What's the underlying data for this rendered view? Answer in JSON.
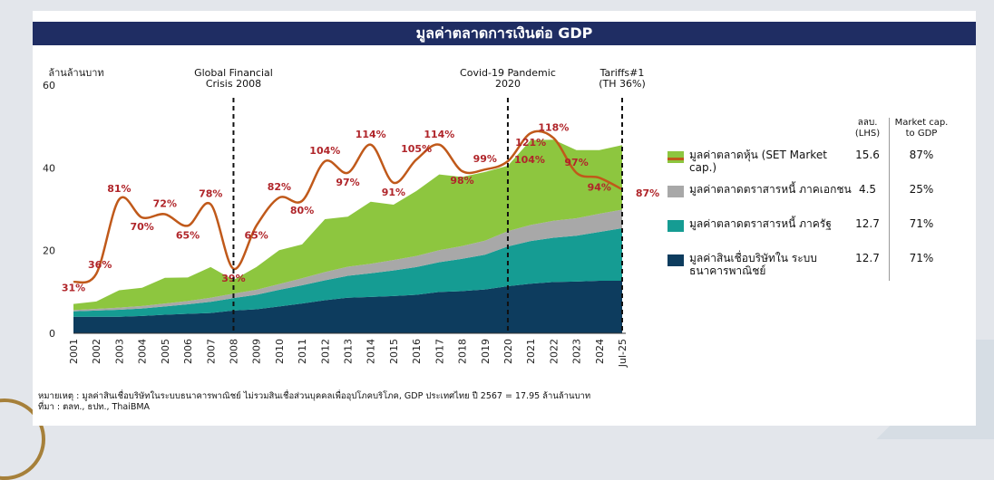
{
  "title": "มูลค่าตลาดการเงินต่อ GDP",
  "chart_data": {
    "type": "area",
    "ylabel": "ล้านล้านบาท",
    "ylim": [
      0,
      60
    ],
    "yticks": [
      0,
      20,
      40,
      60
    ],
    "x": [
      "2001",
      "2002",
      "2003",
      "2004",
      "2005",
      "2006",
      "2007",
      "2008",
      "2009",
      "2010",
      "2011",
      "2012",
      "2013",
      "2014",
      "2015",
      "2016",
      "2017",
      "2018",
      "2019",
      "2020",
      "2021",
      "2022",
      "2023",
      "2024",
      "Jul-25"
    ],
    "series": [
      {
        "name": "มูลค่าสินเชื่อบริษัทใน ระบบธนาคารพาณิชย์",
        "color": "#0d3c5e",
        "values": [
          4,
          4,
          4,
          4.2,
          4.5,
          4.7,
          4.9,
          5.5,
          5.8,
          6.5,
          7.2,
          8,
          8.6,
          8.8,
          9,
          9.3,
          10,
          10.2,
          10.6,
          11.4,
          12,
          12.4,
          12.5,
          12.7,
          12.7
        ]
      },
      {
        "name": "มูลค่าตลาดตราสารหนี้ ภาครัฐ",
        "color": "#159c93",
        "values": [
          1.3,
          1.5,
          1.7,
          1.8,
          2,
          2.3,
          2.7,
          3,
          3.5,
          4,
          4.4,
          4.8,
          5.3,
          5.7,
          6.2,
          6.7,
          7.2,
          7.8,
          8.4,
          9.6,
          10.3,
          10.7,
          11.1,
          11.8,
          12.7
        ]
      },
      {
        "name": "มูลค่าตลาดตราสารหนี้ ภาคเอกชน",
        "color": "#a8a8a8",
        "values": [
          0.3,
          0.4,
          0.5,
          0.6,
          0.7,
          0.8,
          1,
          1.1,
          1.2,
          1.4,
          1.7,
          2,
          2.2,
          2.3,
          2.5,
          2.7,
          2.9,
          3.1,
          3.4,
          3.7,
          3.9,
          4.1,
          4.2,
          4.4,
          4.5
        ]
      },
      {
        "name": "มูลค่าตลาดหุ้น (SET Market cap.)",
        "color": "#8dc63f",
        "values": [
          1.5,
          1.8,
          4.2,
          4.4,
          6.2,
          5.7,
          7.4,
          3.3,
          5.5,
          8.2,
          8.2,
          12.8,
          12.1,
          15,
          13.4,
          15.7,
          18.3,
          16.7,
          16.6,
          15.8,
          20.5,
          19.6,
          16.5,
          15.4,
          15.6
        ]
      }
    ],
    "line": {
      "name": "มูลค่าตลาดหุ้น (SET Market cap.)",
      "color": "#c0591a",
      "labels": [
        "31%",
        "36%",
        "81%",
        "70%",
        "72%",
        "65%",
        "78%",
        "39%",
        "65%",
        "82%",
        "80%",
        "104%",
        "97%",
        "114%",
        "91%",
        "105%",
        "114%",
        "98%",
        "99%",
        "104%",
        "121%",
        "118%",
        "97%",
        "94%",
        "87%"
      ]
    },
    "annotations": [
      {
        "text": "Global Financial Crisis 2008",
        "x": "2008"
      },
      {
        "text": "Covid-19 Pandemic 2020",
        "x": "2020"
      },
      {
        "text": "Tariffs#1 (TH 36%)",
        "x": "Jul-25"
      }
    ]
  },
  "table": {
    "col1_header": "ลลบ. (LHS)",
    "col2_header": "Market cap. to GDP",
    "rows": [
      {
        "label": "มูลค่าตลาดหุ้น (SET Market cap.)",
        "lhs": "15.6",
        "pct": "87%",
        "color": "#8dc63f",
        "line_color": "#c0591a"
      },
      {
        "label": "มูลค่าตลาดตราสารหนี้ ภาคเอกชน",
        "lhs": "4.5",
        "pct": "25%",
        "color": "#a8a8a8"
      },
      {
        "label": "มูลค่าตลาดตราสารหนี้ ภาครัฐ",
        "lhs": "12.7",
        "pct": "71%",
        "color": "#159c93"
      },
      {
        "label": "มูลค่าสินเชื่อบริษัทใน ระบบธนาคารพาณิชย์",
        "lhs": "12.7",
        "pct": "71%",
        "color": "#0d3c5e"
      }
    ]
  },
  "footnote": {
    "line1": "หมายเหตุ : มูลค่าสินเชื่อบริษัทในระบบธนาคารพาณิชย์ ไม่รวมสินเชื่อส่วนบุคคลเพื่ออุปโภคบริโภค, GDP ประเทศไทย ปี 2567 = 17.95 ล้านล้านบาท",
    "line2": "ที่มา : ตลท., ธปท., ThaiBMA"
  }
}
